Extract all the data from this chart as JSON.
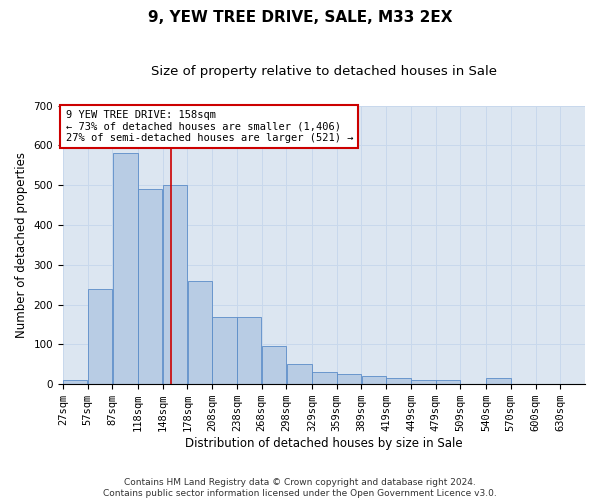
{
  "title": "9, YEW TREE DRIVE, SALE, M33 2EX",
  "subtitle": "Size of property relative to detached houses in Sale",
  "xlabel": "Distribution of detached houses by size in Sale",
  "ylabel": "Number of detached properties",
  "bin_edges": [
    27,
    57,
    87,
    118,
    148,
    178,
    208,
    238,
    268,
    298,
    329,
    359,
    389,
    419,
    449,
    479,
    509,
    540,
    570,
    600,
    630,
    660
  ],
  "bin_labels": [
    "27sqm",
    "57sqm",
    "87sqm",
    "118sqm",
    "148sqm",
    "178sqm",
    "208sqm",
    "238sqm",
    "268sqm",
    "298sqm",
    "329sqm",
    "359sqm",
    "389sqm",
    "419sqm",
    "449sqm",
    "479sqm",
    "509sqm",
    "540sqm",
    "570sqm",
    "600sqm",
    "630sqm"
  ],
  "values": [
    10,
    240,
    580,
    490,
    500,
    260,
    170,
    170,
    95,
    50,
    30,
    25,
    20,
    15,
    10,
    10,
    0,
    15,
    0,
    0,
    0
  ],
  "bar_color": "#b8cce4",
  "bar_edge_color": "#5b8cc8",
  "grid_color": "#c8d8ec",
  "background_color": "#dce6f1",
  "red_line_x": 158,
  "annotation_text": "9 YEW TREE DRIVE: 158sqm\n← 73% of detached houses are smaller (1,406)\n27% of semi-detached houses are larger (521) →",
  "annotation_box_color": "#ffffff",
  "annotation_border_color": "#cc0000",
  "ylim": [
    0,
    700
  ],
  "yticks": [
    0,
    100,
    200,
    300,
    400,
    500,
    600,
    700
  ],
  "footnote": "Contains HM Land Registry data © Crown copyright and database right 2024.\nContains public sector information licensed under the Open Government Licence v3.0.",
  "title_fontsize": 11,
  "subtitle_fontsize": 9.5,
  "label_fontsize": 8.5,
  "tick_fontsize": 7.5,
  "annot_fontsize": 7.5,
  "footnote_fontsize": 6.5
}
